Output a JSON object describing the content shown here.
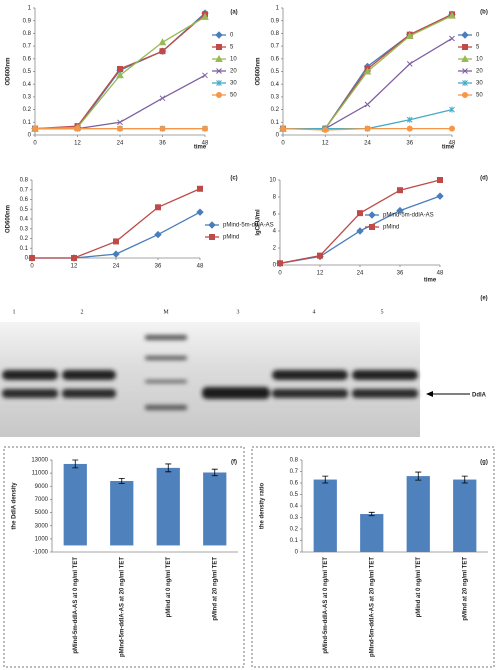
{
  "chart_data": [
    {
      "type": "line",
      "label": "(a)",
      "ylabel": "OD600nm",
      "xlabel": "time",
      "grid": false,
      "x": [
        0,
        12,
        24,
        36,
        48
      ],
      "xlim": [
        0,
        48
      ],
      "xticks": [
        0,
        12,
        24,
        36,
        48
      ],
      "ylim": [
        0,
        1
      ],
      "yticks": [
        0,
        0.1,
        0.2,
        0.3,
        0.4,
        0.5,
        0.6,
        0.7,
        0.8,
        0.9,
        1
      ],
      "series": [
        {
          "name": "0",
          "color": "#4a7ebb",
          "values": [
            0.05,
            0.06,
            0.51,
            0.66,
            0.96
          ]
        },
        {
          "name": "5",
          "color": "#be4b48",
          "values": [
            0.05,
            0.07,
            0.52,
            0.66,
            0.95
          ]
        },
        {
          "name": "10",
          "color": "#98b954",
          "values": [
            0.05,
            0.06,
            0.47,
            0.73,
            0.93
          ]
        },
        {
          "name": "20",
          "color": "#7d60a0",
          "values": [
            0.05,
            0.05,
            0.1,
            0.29,
            0.47
          ]
        },
        {
          "name": "30",
          "color": "#46aac5",
          "values": [
            0.05,
            0.05,
            0.05,
            0.05,
            0.05
          ]
        },
        {
          "name": "50",
          "color": "#f79646",
          "values": [
            0.05,
            0.05,
            0.05,
            0.05,
            0.05
          ]
        }
      ]
    },
    {
      "type": "line",
      "label": "(b)",
      "ylabel": "OD600nm",
      "xlabel": "time",
      "grid": false,
      "x": [
        0,
        12,
        24,
        36,
        48
      ],
      "xlim": [
        0,
        48
      ],
      "xticks": [
        0,
        12,
        24,
        36,
        48
      ],
      "ylim": [
        0,
        1
      ],
      "yticks": [
        0,
        0.1,
        0.2,
        0.3,
        0.4,
        0.5,
        0.6,
        0.7,
        0.8,
        0.9,
        1
      ],
      "series": [
        {
          "name": "0",
          "color": "#4a7ebb",
          "values": [
            0.05,
            0.05,
            0.54,
            0.79,
            0.95
          ]
        },
        {
          "name": "5",
          "color": "#be4b48",
          "values": [
            0.05,
            0.05,
            0.52,
            0.79,
            0.95
          ]
        },
        {
          "name": "10",
          "color": "#98b954",
          "values": [
            0.05,
            0.05,
            0.5,
            0.78,
            0.94
          ]
        },
        {
          "name": "20",
          "color": "#7d60a0",
          "values": [
            0.05,
            0.05,
            0.24,
            0.56,
            0.76
          ]
        },
        {
          "name": "30",
          "color": "#46aac5",
          "values": [
            0.05,
            0.05,
            0.05,
            0.12,
            0.2
          ]
        },
        {
          "name": "50",
          "color": "#f79646",
          "values": [
            0.05,
            0.04,
            0.05,
            0.05,
            0.05
          ]
        }
      ]
    },
    {
      "type": "line",
      "label": "(c)",
      "ylabel": "OD600nm",
      "grid": false,
      "x": [
        0,
        12,
        24,
        36,
        48
      ],
      "xlim": [
        0,
        48
      ],
      "xticks": [
        0,
        12,
        24,
        36,
        48
      ],
      "ylim": [
        0,
        0.8
      ],
      "yticks": [
        0,
        0.1,
        0.2,
        0.3,
        0.4,
        0.5,
        0.6,
        0.7,
        0.8
      ],
      "series": [
        {
          "name": "pMind-5m-ddlA-AS",
          "color": "#4a7ebb",
          "values": [
            0,
            0,
            0.04,
            0.24,
            0.47
          ]
        },
        {
          "name": "pMind",
          "color": "#be4b48",
          "values": [
            0,
            0,
            0.17,
            0.52,
            0.71
          ]
        }
      ]
    },
    {
      "type": "line",
      "label": "(d)",
      "ylabel": "lgCFU/ml",
      "xlabel": "time",
      "grid": false,
      "x": [
        0,
        12,
        24,
        36,
        48
      ],
      "xlim": [
        0,
        48
      ],
      "xticks": [
        0,
        12,
        24,
        36,
        48
      ],
      "ylim": [
        0,
        10
      ],
      "yticks": [
        0,
        2,
        4,
        6,
        8,
        10
      ],
      "series": [
        {
          "name": "pMind-5m-ddlA-AS",
          "color": "#4a7ebb",
          "values": [
            0.2,
            1.0,
            4.0,
            6.4,
            8.1
          ]
        },
        {
          "name": "pMind",
          "color": "#be4b48",
          "values": [
            0.2,
            1.1,
            6.1,
            8.8,
            10.0
          ]
        }
      ]
    },
    {
      "type": "blot",
      "label": "(e)",
      "lanes": [
        "1",
        "2",
        "M",
        "3",
        "4",
        "5"
      ],
      "annotation": "DdlA"
    },
    {
      "type": "bar",
      "label": "(f)",
      "ylabel": "the DdlA density",
      "color": "#4f81bd",
      "grid": false,
      "categories": [
        "pMind-5m-ddlA-AS at 0 ng/ml TET",
        "pMind-5m-ddlA-AS at 20 ng/ml TET",
        "pMind at 0 ng/ml TET",
        "pMind at 20 ng/ml TET"
      ],
      "values": [
        12400,
        9800,
        11800,
        11100
      ],
      "errors": [
        600,
        400,
        600,
        500
      ],
      "ylim": [
        -1000,
        13000
      ],
      "yticks": [
        -1000,
        1000,
        3000,
        5000,
        7000,
        9000,
        11000,
        13000
      ]
    },
    {
      "type": "bar",
      "label": "(g)",
      "ylabel": "the density ratio",
      "color": "#4f81bd",
      "grid": false,
      "categories": [
        "pMind-5m-ddlA-AS at 0 ng/ml TET",
        "pMind-5m-ddlA-AS at 20 ng/ml TET",
        "pMind at 0 ng/ml TET",
        "pMind at 20 ng/ml TET"
      ],
      "values": [
        0.63,
        0.33,
        0.66,
        0.63
      ],
      "errors": [
        0.03,
        0.015,
        0.035,
        0.03
      ],
      "ylim": [
        0,
        0.8
      ],
      "yticks": [
        0,
        0.1,
        0.2,
        0.3,
        0.4,
        0.5,
        0.6,
        0.7,
        0.8
      ]
    }
  ]
}
